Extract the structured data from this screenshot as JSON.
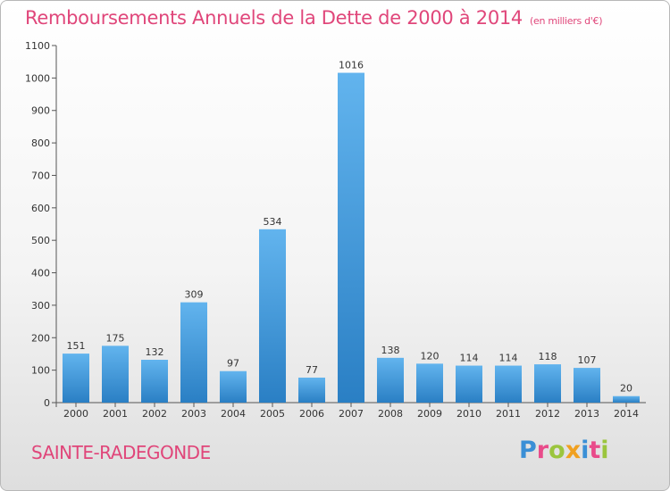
{
  "header": {
    "title": "Remboursements Annuels de la Dette de 2000 à 2014",
    "unit": "(en milliers d'€)"
  },
  "footer": {
    "town": "SAINTE-RADEGONDE",
    "logo_letters": [
      {
        "char": "P",
        "color": "#3a8fd6"
      },
      {
        "char": "r",
        "color": "#e94b8a"
      },
      {
        "char": "o",
        "color": "#9bc53d"
      },
      {
        "char": "x",
        "color": "#f0a020"
      },
      {
        "char": "i",
        "color": "#3a8fd6"
      },
      {
        "char": "t",
        "color": "#e94b8a"
      },
      {
        "char": "i",
        "color": "#9bc53d"
      }
    ]
  },
  "chart_data": {
    "type": "bar",
    "title": "Remboursements Annuels de la Dette de 2000 à 2014",
    "subtitle": "(en milliers d'€)",
    "categories": [
      "2000",
      "2001",
      "2002",
      "2003",
      "2004",
      "2005",
      "2006",
      "2007",
      "2008",
      "2009",
      "2010",
      "2011",
      "2012",
      "2013",
      "2014"
    ],
    "values": [
      151,
      175,
      132,
      309,
      97,
      534,
      77,
      1016,
      138,
      120,
      114,
      114,
      118,
      107,
      20
    ],
    "ylim": [
      0,
      1100
    ],
    "yticks": [
      0,
      100,
      200,
      300,
      400,
      500,
      600,
      700,
      800,
      900,
      1000,
      1100
    ],
    "xlabel": "",
    "ylabel": "",
    "grid": false,
    "legend": "none",
    "bar_color_light": "#62b4ee",
    "bar_color_dark": "#2a7fc4"
  }
}
